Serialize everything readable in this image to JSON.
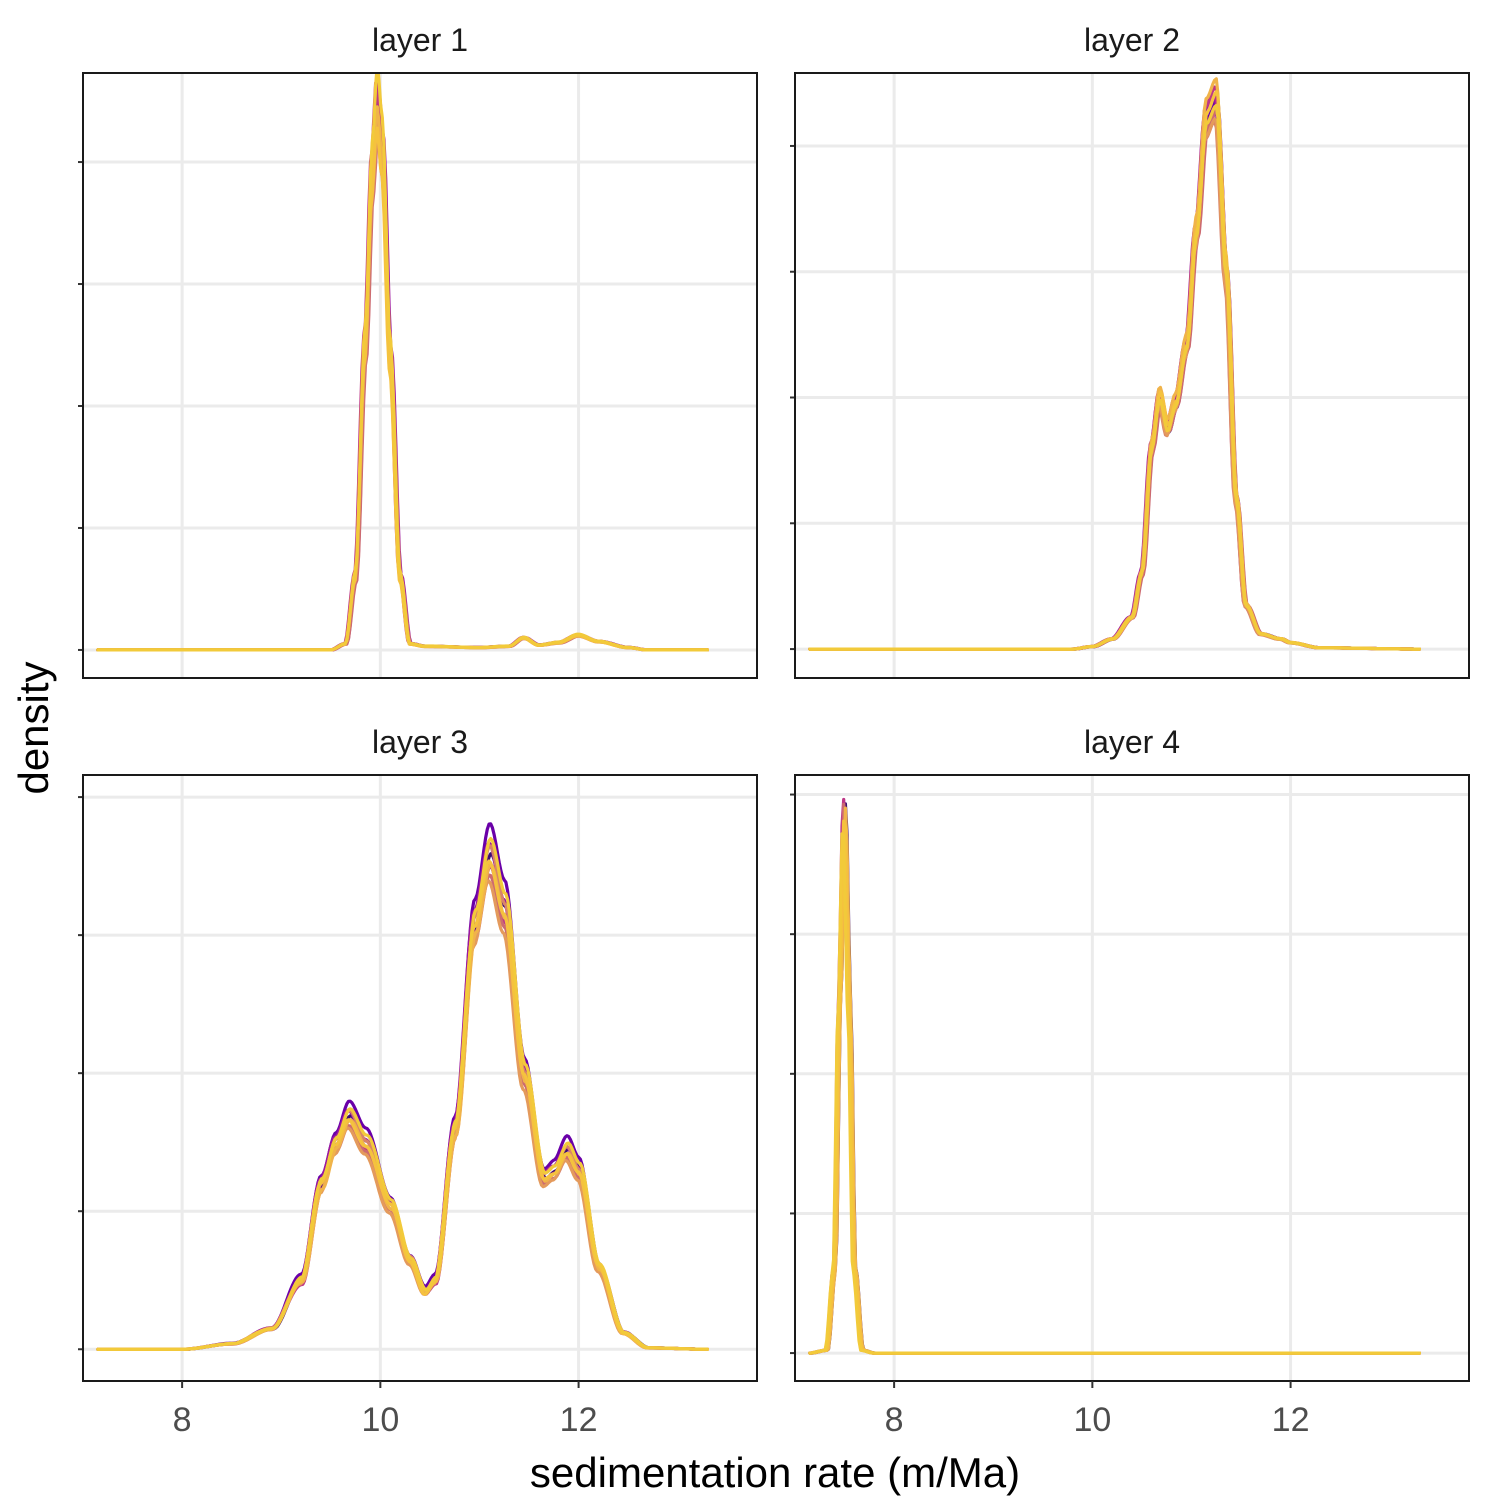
{
  "chart_data": {
    "type": "line",
    "xlabel": "sedimentation rate (m/Ma)",
    "ylabel": "density",
    "xlim": [
      7.0,
      13.8
    ],
    "x_ticks": [
      8,
      10,
      12
    ],
    "x_tick_labels": [
      "8",
      "10",
      "12"
    ],
    "y_tick_labels_shown": false,
    "grid": true,
    "palette": [
      "#3b0f70",
      "#6a00a8",
      "#9c179e",
      "#bd3786",
      "#cc6a70",
      "#d8836a",
      "#e49a5c",
      "#f0b34a",
      "#f5c23e",
      "#f2ca3a"
    ],
    "panels": [
      {
        "strip": "layer 1",
        "y_gridlines": [
          0,
          1,
          2,
          3,
          4
        ],
        "ylim": [
          -0.23,
          4.73
        ],
        "base": [
          [
            7.15,
            0.0
          ],
          [
            9.5,
            0.0
          ],
          [
            9.65,
            0.05
          ],
          [
            9.75,
            0.6
          ],
          [
            9.85,
            2.5
          ],
          [
            9.92,
            3.9
          ],
          [
            9.97,
            4.5
          ],
          [
            10.02,
            4.1
          ],
          [
            10.1,
            2.4
          ],
          [
            10.2,
            0.6
          ],
          [
            10.3,
            0.05
          ],
          [
            10.45,
            0.03
          ],
          [
            11.0,
            0.02
          ],
          [
            11.3,
            0.03
          ],
          [
            11.45,
            0.1
          ],
          [
            11.6,
            0.04
          ],
          [
            11.8,
            0.06
          ],
          [
            12.0,
            0.12
          ],
          [
            12.2,
            0.07
          ],
          [
            12.5,
            0.02
          ],
          [
            12.7,
            0.0
          ],
          [
            13.3,
            0.0
          ]
        ]
      },
      {
        "strip": "layer 2",
        "y_gridlines": [
          0,
          1,
          2,
          3,
          4
        ],
        "ylim": [
          -0.23,
          4.58
        ],
        "base": [
          [
            7.15,
            0.0
          ],
          [
            9.8,
            0.0
          ],
          [
            10.0,
            0.02
          ],
          [
            10.2,
            0.08
          ],
          [
            10.4,
            0.25
          ],
          [
            10.5,
            0.6
          ],
          [
            10.6,
            1.6
          ],
          [
            10.68,
            2.0
          ],
          [
            10.76,
            1.75
          ],
          [
            10.84,
            1.95
          ],
          [
            10.95,
            2.4
          ],
          [
            11.05,
            3.3
          ],
          [
            11.15,
            4.2
          ],
          [
            11.25,
            4.35
          ],
          [
            11.35,
            3.0
          ],
          [
            11.45,
            1.2
          ],
          [
            11.55,
            0.35
          ],
          [
            11.7,
            0.12
          ],
          [
            11.9,
            0.08
          ],
          [
            12.0,
            0.05
          ],
          [
            12.3,
            0.01
          ],
          [
            13.3,
            0.0
          ]
        ]
      },
      {
        "strip": "layer 3",
        "y_gridlines": [
          0,
          1,
          2,
          3,
          4
        ],
        "ylim": [
          -0.23,
          4.16
        ],
        "base": [
          [
            7.15,
            0.0
          ],
          [
            8.0,
            0.0
          ],
          [
            8.5,
            0.04
          ],
          [
            8.9,
            0.15
          ],
          [
            9.2,
            0.5
          ],
          [
            9.4,
            1.2
          ],
          [
            9.55,
            1.5
          ],
          [
            9.68,
            1.7
          ],
          [
            9.85,
            1.5
          ],
          [
            10.1,
            1.05
          ],
          [
            10.3,
            0.65
          ],
          [
            10.45,
            0.42
          ],
          [
            10.55,
            0.5
          ],
          [
            10.75,
            1.6
          ],
          [
            10.95,
            3.1
          ],
          [
            11.1,
            3.6
          ],
          [
            11.25,
            3.2
          ],
          [
            11.45,
            2.0
          ],
          [
            11.65,
            1.25
          ],
          [
            11.75,
            1.3
          ],
          [
            11.88,
            1.45
          ],
          [
            12.0,
            1.3
          ],
          [
            12.2,
            0.6
          ],
          [
            12.45,
            0.12
          ],
          [
            12.7,
            0.01
          ],
          [
            13.3,
            0.0
          ]
        ]
      },
      {
        "strip": "layer 4",
        "y_gridlines": [
          0,
          1,
          2,
          3,
          4
        ],
        "ylim": [
          -0.2,
          4.14
        ],
        "base": [
          [
            7.15,
            0.0
          ],
          [
            7.32,
            0.02
          ],
          [
            7.4,
            0.6
          ],
          [
            7.45,
            2.5
          ],
          [
            7.5,
            3.9
          ],
          [
            7.55,
            2.5
          ],
          [
            7.6,
            0.6
          ],
          [
            7.68,
            0.02
          ],
          [
            7.8,
            0.0
          ],
          [
            13.3,
            0.0
          ]
        ]
      }
    ]
  }
}
